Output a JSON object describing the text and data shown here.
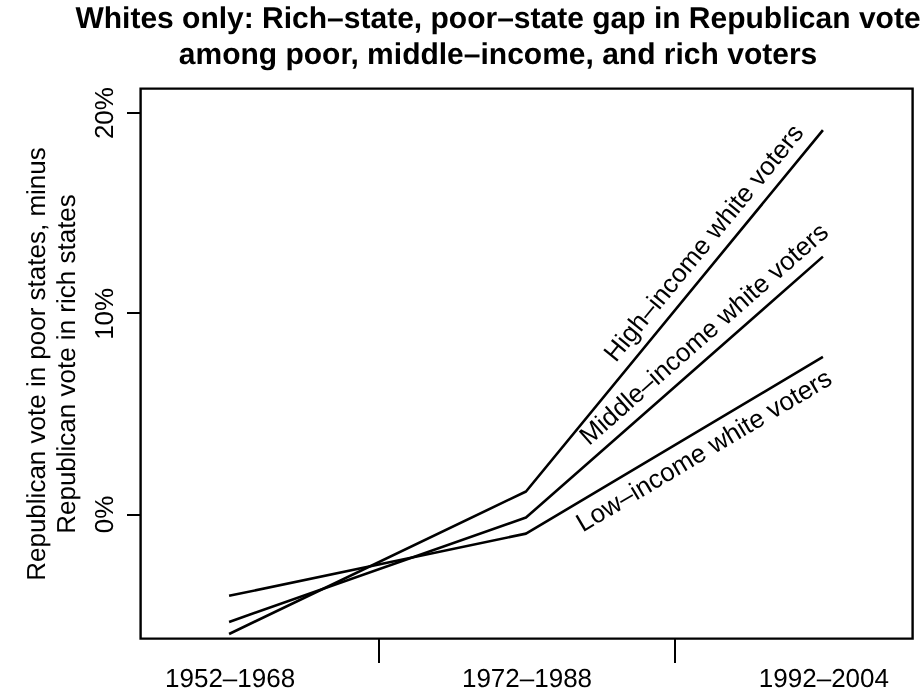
{
  "chart_data": {
    "type": "line",
    "title": [
      "Whites only:  Rich–state, poor–state gap in Republican vote",
      "among poor, middle–income, and rich voters"
    ],
    "ylabel": [
      "Republican vote in poor states, minus",
      "Republican vote in rich states"
    ],
    "categories": [
      "1952–1968",
      "1972–1988",
      "1992–2004"
    ],
    "ylim": [
      -6.2,
      21.2
    ],
    "yticks": [
      {
        "value": 0,
        "label": "0%"
      },
      {
        "value": 10,
        "label": "10%"
      },
      {
        "value": 20,
        "label": "20%"
      }
    ],
    "series": [
      {
        "name": "High–income white voters",
        "color": "#000000",
        "values": [
          -6.0,
          1.1,
          19.1
        ]
      },
      {
        "name": "Middle–income white voters",
        "color": "#000000",
        "values": [
          -5.4,
          -0.2,
          12.8
        ]
      },
      {
        "name": "Low–income white voters",
        "color": "#000000",
        "values": [
          -4.1,
          -1.0,
          7.8
        ]
      }
    ],
    "grid": false,
    "legend": false
  }
}
